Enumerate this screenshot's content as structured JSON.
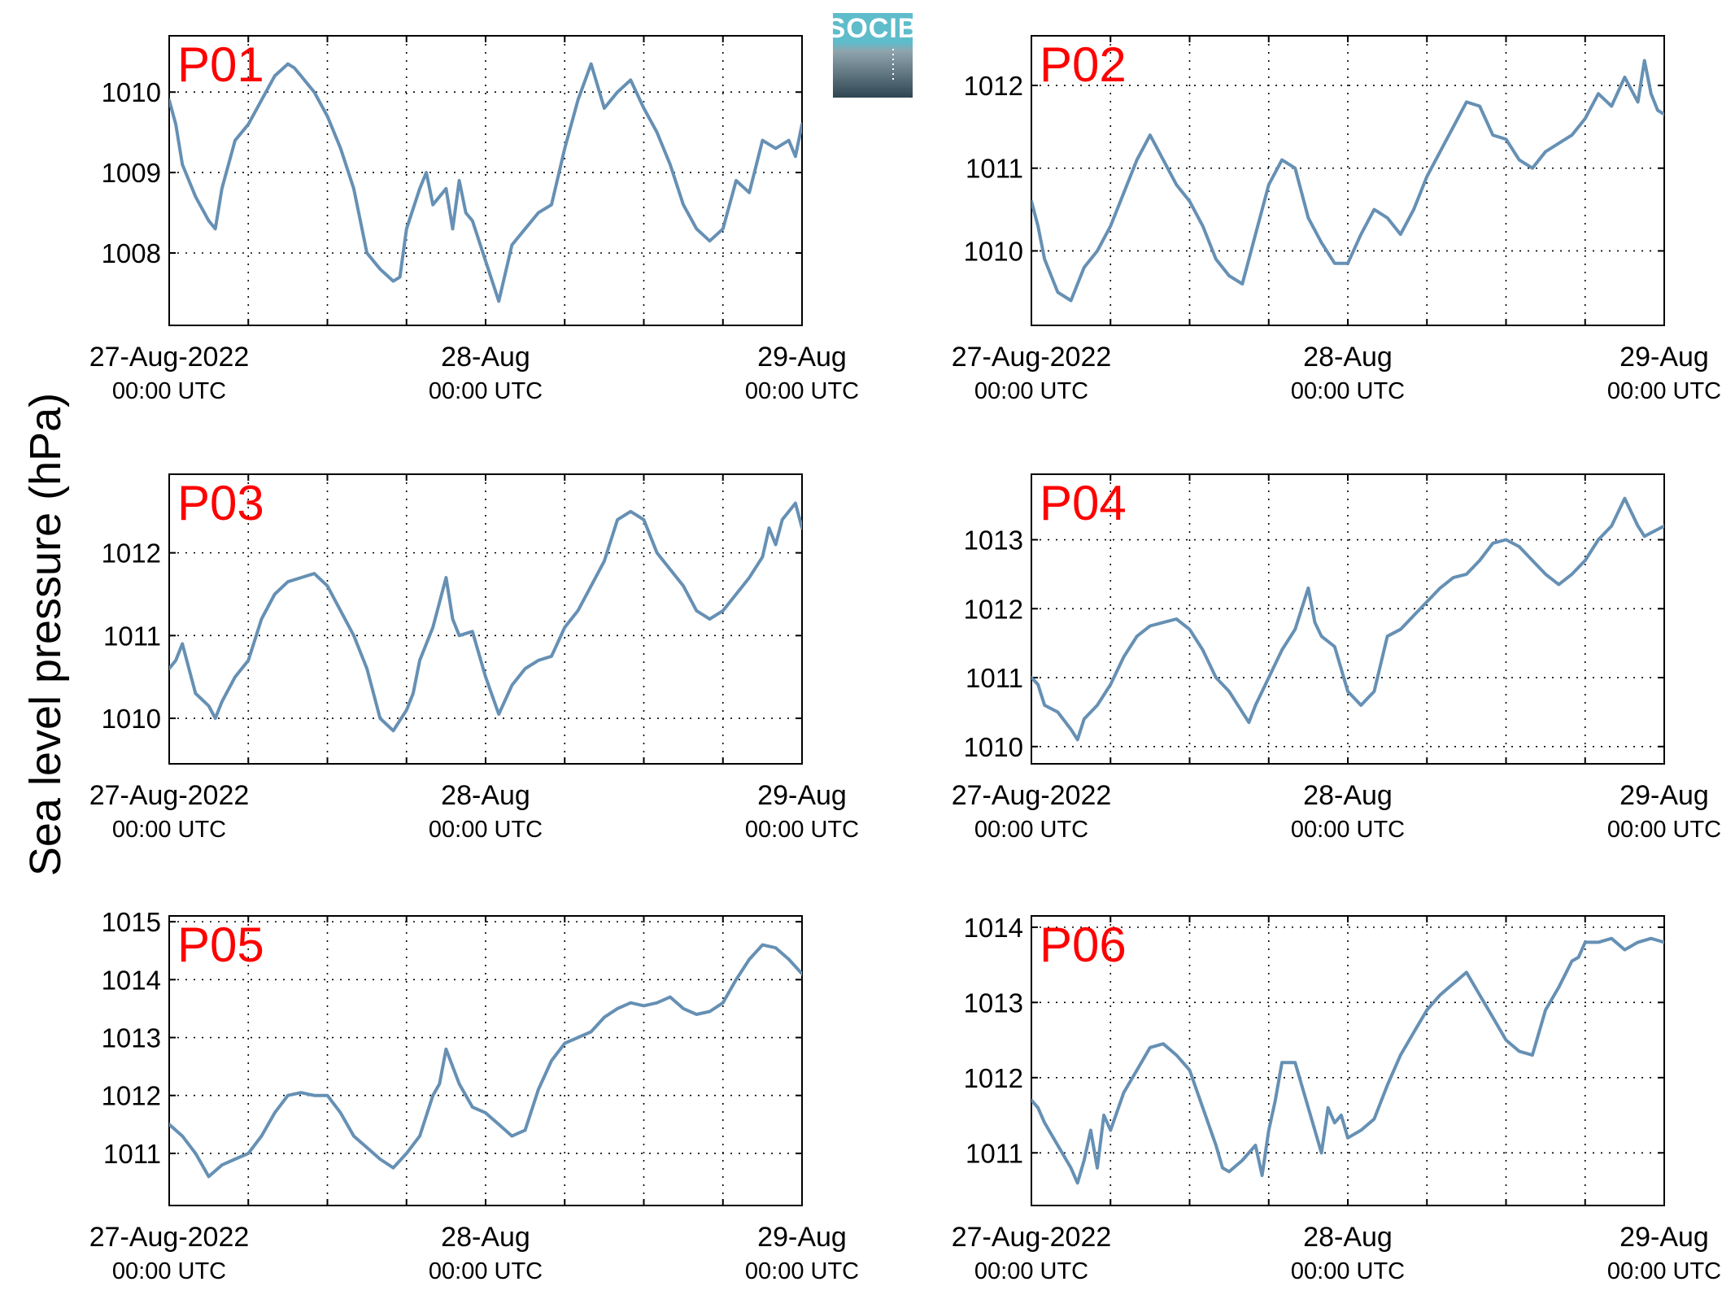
{
  "figure": {
    "ylabel": "Sea level pressure (hPa)",
    "logo": {
      "text": "SOCIB",
      "color_top": "#5fbccb",
      "color_bottom": "#2f4652"
    },
    "title_color": "#ff0000",
    "line_color": "#6690b4"
  },
  "chart_data": [
    {
      "type": "line",
      "title": "P01",
      "ylim": [
        1007.1,
        1010.7
      ],
      "yticks": [
        1008,
        1009,
        1010
      ],
      "xlim": [
        0,
        48
      ],
      "grid": true,
      "xticks": [
        {
          "x": 0,
          "date": "27-Aug-2022",
          "time": "00:00 UTC"
        },
        {
          "x": 24,
          "date": "28-Aug",
          "time": "00:00 UTC"
        },
        {
          "x": 48,
          "date": "29-Aug",
          "time": "00:00 UTC"
        }
      ],
      "x": [
        0,
        0.5,
        1,
        2,
        3,
        3.5,
        4,
        5,
        6,
        7,
        8,
        9,
        9.5,
        10,
        11,
        12,
        13,
        14,
        14.5,
        15,
        16,
        17,
        17.5,
        18,
        19,
        19.5,
        20,
        21,
        21.5,
        22,
        22.5,
        23,
        24,
        25,
        26,
        27,
        28,
        29,
        30,
        31,
        32,
        33,
        34,
        35,
        36,
        37,
        38,
        39,
        40,
        41,
        42,
        43,
        44,
        45,
        46,
        47,
        47.5,
        48
      ],
      "y": [
        1009.9,
        1009.6,
        1009.1,
        1008.7,
        1008.4,
        1008.3,
        1008.8,
        1009.4,
        1009.6,
        1009.9,
        1010.2,
        1010.35,
        1010.3,
        1010.2,
        1010.0,
        1009.7,
        1009.3,
        1008.8,
        1008.4,
        1008.0,
        1007.8,
        1007.65,
        1007.7,
        1008.3,
        1008.8,
        1009.0,
        1008.6,
        1008.8,
        1008.3,
        1008.9,
        1008.5,
        1008.4,
        1007.9,
        1007.4,
        1008.1,
        1008.3,
        1008.5,
        1008.6,
        1009.3,
        1009.9,
        1010.35,
        1009.8,
        1010.0,
        1010.15,
        1009.8,
        1009.5,
        1009.1,
        1008.6,
        1008.3,
        1008.15,
        1008.3,
        1008.9,
        1008.75,
        1009.4,
        1009.3,
        1009.4,
        1009.2,
        1009.6
      ]
    },
    {
      "type": "line",
      "title": "P02",
      "ylim": [
        1009.1,
        1012.6
      ],
      "yticks": [
        1010,
        1011,
        1012
      ],
      "xlim": [
        0,
        48
      ],
      "grid": true,
      "xticks": [
        {
          "x": 0,
          "date": "27-Aug-2022",
          "time": "00:00 UTC"
        },
        {
          "x": 24,
          "date": "28-Aug",
          "time": "00:00 UTC"
        },
        {
          "x": 48,
          "date": "29-Aug",
          "time": "00:00 UTC"
        }
      ],
      "x": [
        0,
        0.5,
        1,
        2,
        3,
        4,
        5,
        6,
        7,
        8,
        9,
        10,
        11,
        12,
        13,
        14,
        15,
        16,
        17,
        18,
        19,
        20,
        21,
        22,
        23,
        24,
        25,
        26,
        27,
        28,
        29,
        30,
        31,
        32,
        33,
        34,
        35,
        36,
        37,
        38,
        39,
        40,
        41,
        42,
        43,
        44,
        45,
        46,
        46.5,
        47,
        47.5,
        48
      ],
      "y": [
        1010.6,
        1010.3,
        1009.9,
        1009.5,
        1009.4,
        1009.8,
        1010.0,
        1010.3,
        1010.7,
        1011.1,
        1011.4,
        1011.1,
        1010.8,
        1010.6,
        1010.3,
        1009.9,
        1009.7,
        1009.6,
        1010.2,
        1010.8,
        1011.1,
        1011.0,
        1010.4,
        1010.1,
        1009.85,
        1009.85,
        1010.2,
        1010.5,
        1010.4,
        1010.2,
        1010.5,
        1010.9,
        1011.2,
        1011.5,
        1011.8,
        1011.75,
        1011.4,
        1011.35,
        1011.1,
        1011.0,
        1011.2,
        1011.3,
        1011.4,
        1011.6,
        1011.9,
        1011.75,
        1012.1,
        1011.8,
        1012.3,
        1011.9,
        1011.7,
        1011.65
      ]
    },
    {
      "type": "line",
      "title": "P03",
      "ylim": [
        1009.45,
        1012.95
      ],
      "yticks": [
        1010,
        1011,
        1012
      ],
      "xlim": [
        0,
        48
      ],
      "grid": true,
      "xticks": [
        {
          "x": 0,
          "date": "27-Aug-2022",
          "time": "00:00 UTC"
        },
        {
          "x": 24,
          "date": "28-Aug",
          "time": "00:00 UTC"
        },
        {
          "x": 48,
          "date": "29-Aug",
          "time": "00:00 UTC"
        }
      ],
      "x": [
        0,
        0.5,
        1,
        1.5,
        2,
        3,
        3.5,
        4,
        5,
        6,
        7,
        8,
        9,
        10,
        11,
        12,
        13,
        14,
        15,
        15.5,
        16,
        17,
        18,
        18.5,
        19,
        20,
        21,
        21.5,
        22,
        23,
        24,
        25,
        26,
        27,
        28,
        29,
        30,
        31,
        32,
        33,
        34,
        35,
        36,
        37,
        38,
        39,
        40,
        40.5,
        41,
        42,
        43,
        44,
        45,
        45.5,
        46,
        46.5,
        47,
        47.5,
        48
      ],
      "y": [
        1010.6,
        1010.7,
        1010.9,
        1010.6,
        1010.3,
        1010.15,
        1010.0,
        1010.2,
        1010.5,
        1010.7,
        1011.2,
        1011.5,
        1011.65,
        1011.7,
        1011.75,
        1011.6,
        1011.3,
        1011.0,
        1010.6,
        1010.3,
        1010.0,
        1009.85,
        1010.1,
        1010.3,
        1010.7,
        1011.1,
        1011.7,
        1011.2,
        1011.0,
        1011.05,
        1010.5,
        1010.05,
        1010.4,
        1010.6,
        1010.7,
        1010.75,
        1011.1,
        1011.3,
        1011.6,
        1011.9,
        1012.4,
        1012.5,
        1012.4,
        1012.0,
        1011.8,
        1011.6,
        1011.3,
        1011.25,
        1011.2,
        1011.3,
        1011.5,
        1011.7,
        1011.95,
        1012.3,
        1012.1,
        1012.4,
        1012.5,
        1012.6,
        1012.3
      ]
    },
    {
      "type": "line",
      "title": "P04",
      "ylim": [
        1009.75,
        1013.95
      ],
      "yticks": [
        1010,
        1011,
        1012,
        1013
      ],
      "xlim": [
        0,
        48
      ],
      "grid": true,
      "xticks": [
        {
          "x": 0,
          "date": "27-Aug-2022",
          "time": "00:00 UTC"
        },
        {
          "x": 24,
          "date": "28-Aug",
          "time": "00:00 UTC"
        },
        {
          "x": 48,
          "date": "29-Aug",
          "time": "00:00 UTC"
        }
      ],
      "x": [
        0,
        0.5,
        1,
        2,
        3,
        3.5,
        4,
        5,
        6,
        7,
        8,
        9,
        10,
        11,
        12,
        13,
        14,
        15,
        16,
        16.5,
        17,
        18,
        19,
        20,
        21,
        21.5,
        22,
        23,
        24,
        25,
        26,
        27,
        28,
        29,
        30,
        31,
        32,
        33,
        34,
        35,
        36,
        37,
        38,
        39,
        40,
        41,
        42,
        43,
        44,
        45,
        45.5,
        46,
        46.5,
        47,
        48
      ],
      "y": [
        1011.0,
        1010.9,
        1010.6,
        1010.5,
        1010.25,
        1010.1,
        1010.4,
        1010.6,
        1010.9,
        1011.3,
        1011.6,
        1011.75,
        1011.8,
        1011.85,
        1011.7,
        1011.4,
        1011.0,
        1010.8,
        1010.5,
        1010.35,
        1010.6,
        1011.0,
        1011.4,
        1011.7,
        1012.3,
        1011.8,
        1011.6,
        1011.45,
        1010.8,
        1010.6,
        1010.8,
        1011.6,
        1011.7,
        1011.9,
        1012.1,
        1012.3,
        1012.45,
        1012.5,
        1012.7,
        1012.95,
        1013.0,
        1012.9,
        1012.7,
        1012.5,
        1012.35,
        1012.5,
        1012.7,
        1013.0,
        1013.2,
        1013.6,
        1013.4,
        1013.2,
        1013.05,
        1013.1,
        1013.2
      ]
    },
    {
      "type": "line",
      "title": "P05",
      "ylim": [
        1010.1,
        1015.1
      ],
      "yticks": [
        1011,
        1012,
        1013,
        1014,
        1015
      ],
      "xlim": [
        0,
        48
      ],
      "grid": true,
      "xticks": [
        {
          "x": 0,
          "date": "27-Aug-2022",
          "time": "00:00 UTC"
        },
        {
          "x": 24,
          "date": "28-Aug",
          "time": "00:00 UTC"
        },
        {
          "x": 48,
          "date": "29-Aug",
          "time": "00:00 UTC"
        }
      ],
      "x": [
        0,
        1,
        2,
        3,
        4,
        5,
        6,
        7,
        8,
        9,
        10,
        11,
        12,
        13,
        14,
        15,
        16,
        17,
        18,
        19,
        20,
        20.5,
        21,
        22,
        23,
        24,
        25,
        26,
        27,
        28,
        29,
        30,
        31,
        32,
        33,
        34,
        35,
        36,
        37,
        38,
        39,
        40,
        41,
        42,
        43,
        44,
        45,
        46,
        47,
        48
      ],
      "y": [
        1011.5,
        1011.3,
        1011.0,
        1010.6,
        1010.8,
        1010.9,
        1011.0,
        1011.3,
        1011.7,
        1012.0,
        1012.05,
        1012.0,
        1012.0,
        1011.7,
        1011.3,
        1011.1,
        1010.9,
        1010.75,
        1011.0,
        1011.3,
        1012.0,
        1012.2,
        1012.8,
        1012.2,
        1011.8,
        1011.7,
        1011.5,
        1011.3,
        1011.4,
        1012.1,
        1012.6,
        1012.9,
        1013.0,
        1013.1,
        1013.35,
        1013.5,
        1013.6,
        1013.55,
        1013.6,
        1013.7,
        1013.5,
        1013.4,
        1013.45,
        1013.6,
        1014.0,
        1014.35,
        1014.6,
        1014.55,
        1014.35,
        1014.1
      ]
    },
    {
      "type": "line",
      "title": "P06",
      "ylim": [
        1010.3,
        1014.15
      ],
      "yticks": [
        1011,
        1012,
        1013,
        1014
      ],
      "xlim": [
        0,
        48
      ],
      "grid": true,
      "xticks": [
        {
          "x": 0,
          "date": "27-Aug-2022",
          "time": "00:00 UTC"
        },
        {
          "x": 24,
          "date": "28-Aug",
          "time": "00:00 UTC"
        },
        {
          "x": 48,
          "date": "29-Aug",
          "time": "00:00 UTC"
        }
      ],
      "x": [
        0,
        0.5,
        1,
        2,
        3,
        3.5,
        4,
        4.5,
        5,
        5.5,
        6,
        7,
        8,
        9,
        10,
        11,
        12,
        13,
        14,
        14.5,
        15,
        16,
        17,
        17.5,
        18,
        18.5,
        19,
        20,
        21,
        22,
        22.5,
        23,
        23.5,
        24,
        25,
        26,
        27,
        28,
        29,
        30,
        31,
        32,
        33,
        34,
        35,
        36,
        37,
        38,
        38.5,
        39,
        40,
        41,
        41.5,
        42,
        43,
        44,
        45,
        46,
        47,
        48
      ],
      "y": [
        1011.7,
        1011.6,
        1011.4,
        1011.1,
        1010.8,
        1010.6,
        1010.9,
        1011.3,
        1010.8,
        1011.5,
        1011.3,
        1011.8,
        1012.1,
        1012.4,
        1012.45,
        1012.3,
        1012.1,
        1011.6,
        1011.1,
        1010.8,
        1010.75,
        1010.9,
        1011.1,
        1010.7,
        1011.3,
        1011.7,
        1012.2,
        1012.2,
        1011.6,
        1011.0,
        1011.6,
        1011.4,
        1011.5,
        1011.2,
        1011.3,
        1011.45,
        1011.9,
        1012.3,
        1012.6,
        1012.9,
        1013.1,
        1013.25,
        1013.4,
        1013.1,
        1012.8,
        1012.5,
        1012.35,
        1012.3,
        1012.6,
        1012.9,
        1013.2,
        1013.55,
        1013.6,
        1013.8,
        1013.8,
        1013.85,
        1013.7,
        1013.8,
        1013.85,
        1013.8
      ]
    }
  ]
}
